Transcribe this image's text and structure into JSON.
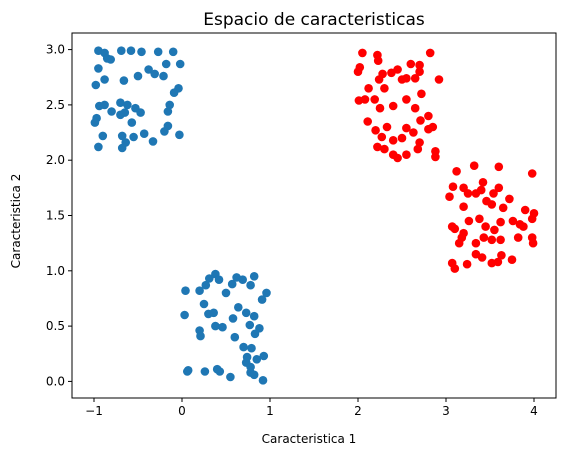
{
  "chart_data": {
    "type": "scatter",
    "title": "Espacio de caracteristicas",
    "xlabel": "Caracteristica 1",
    "ylabel": "Caracteristica 2",
    "xlim": [
      -1.25,
      4.25
    ],
    "ylim": [
      -0.15,
      3.15
    ],
    "xticks": [
      -1,
      0,
      1,
      2,
      3,
      4
    ],
    "yticks": [
      0.0,
      0.5,
      1.0,
      1.5,
      2.0,
      2.5,
      3.0
    ],
    "ytick_labels": [
      "0.0",
      "0.5",
      "1.0",
      "1.5",
      "2.0",
      "2.5",
      "3.0"
    ],
    "grid": false,
    "legend": "none",
    "series": [
      {
        "color": "#1f77b4",
        "points": [
          [
            -0.95,
            2.99
          ],
          [
            -0.88,
            2.97
          ],
          [
            -0.85,
            2.92
          ],
          [
            -0.69,
            2.99
          ],
          [
            -0.58,
            2.99
          ],
          [
            -0.46,
            2.98
          ],
          [
            -0.27,
            2.98
          ],
          [
            -0.1,
            2.98
          ],
          [
            -0.98,
            2.68
          ],
          [
            -0.95,
            2.83
          ],
          [
            -0.88,
            2.73
          ],
          [
            -0.81,
            2.91
          ],
          [
            -0.66,
            2.72
          ],
          [
            -0.5,
            2.76
          ],
          [
            -0.38,
            2.82
          ],
          [
            -0.31,
            2.78
          ],
          [
            -0.21,
            2.76
          ],
          [
            -0.02,
            2.87
          ],
          [
            -0.18,
            2.87
          ],
          [
            -0.94,
            2.49
          ],
          [
            -0.88,
            2.5
          ],
          [
            -0.97,
            2.38
          ],
          [
            -0.99,
            2.34
          ],
          [
            -0.8,
            2.44
          ],
          [
            -0.7,
            2.52
          ],
          [
            -0.62,
            2.5
          ],
          [
            -0.65,
            2.43
          ],
          [
            -0.7,
            2.41
          ],
          [
            -0.47,
            2.43
          ],
          [
            -0.53,
            2.47
          ],
          [
            -0.14,
            2.5
          ],
          [
            -0.16,
            2.44
          ],
          [
            -0.04,
            2.65
          ],
          [
            -0.09,
            2.61
          ],
          [
            -0.9,
            2.22
          ],
          [
            -0.95,
            2.12
          ],
          [
            -0.68,
            2.22
          ],
          [
            -0.64,
            2.16
          ],
          [
            -0.55,
            2.21
          ],
          [
            -0.57,
            2.34
          ],
          [
            -0.33,
            2.17
          ],
          [
            -0.2,
            2.26
          ],
          [
            -0.16,
            2.31
          ],
          [
            -0.03,
            2.23
          ],
          [
            -0.68,
            2.11
          ],
          [
            -0.43,
            2.24
          ],
          [
            0.04,
            0.82
          ],
          [
            0.27,
            0.87
          ],
          [
            0.31,
            0.93
          ],
          [
            0.38,
            0.97
          ],
          [
            0.42,
            0.92
          ],
          [
            0.5,
            0.8
          ],
          [
            0.57,
            0.88
          ],
          [
            0.62,
            0.94
          ],
          [
            0.69,
            0.92
          ],
          [
            0.78,
            0.87
          ],
          [
            0.82,
            0.95
          ],
          [
            0.91,
            0.74
          ],
          [
            0.96,
            0.8
          ],
          [
            0.2,
            0.82
          ],
          [
            0.25,
            0.7
          ],
          [
            0.03,
            0.6
          ],
          [
            0.2,
            0.46
          ],
          [
            0.3,
            0.61
          ],
          [
            0.36,
            0.62
          ],
          [
            0.38,
            0.5
          ],
          [
            0.46,
            0.49
          ],
          [
            0.58,
            0.57
          ],
          [
            0.64,
            0.67
          ],
          [
            0.73,
            0.62
          ],
          [
            0.82,
            0.59
          ],
          [
            0.77,
            0.51
          ],
          [
            0.21,
            0.41
          ],
          [
            0.6,
            0.4
          ],
          [
            0.7,
            0.31
          ],
          [
            0.83,
            0.43
          ],
          [
            0.88,
            0.48
          ],
          [
            0.93,
            0.23
          ],
          [
            0.4,
            0.11
          ],
          [
            0.43,
            0.09
          ],
          [
            0.26,
            0.09
          ],
          [
            0.07,
            0.1
          ],
          [
            0.06,
            0.09
          ],
          [
            0.55,
            0.04
          ],
          [
            0.73,
            0.17
          ],
          [
            0.78,
            0.08
          ],
          [
            0.82,
            0.06
          ],
          [
            0.85,
            0.2
          ],
          [
            0.78,
            0.13
          ],
          [
            0.74,
            0.22
          ],
          [
            0.92,
            0.01
          ],
          [
            0.79,
            0.3
          ]
        ]
      },
      {
        "color": "#ff0000",
        "points": [
          [
            2.05,
            2.97
          ],
          [
            2.22,
            2.95
          ],
          [
            2.23,
            2.9
          ],
          [
            2.38,
            2.79
          ],
          [
            2.5,
            2.73
          ],
          [
            2.6,
            2.87
          ],
          [
            2.7,
            2.86
          ],
          [
            2.7,
            2.8
          ],
          [
            2.82,
            2.97
          ],
          [
            2.92,
            2.73
          ],
          [
            2.02,
            2.84
          ],
          [
            2.0,
            2.8
          ],
          [
            2.12,
            2.65
          ],
          [
            2.24,
            2.73
          ],
          [
            2.28,
            2.78
          ],
          [
            2.45,
            2.82
          ],
          [
            2.55,
            2.74
          ],
          [
            2.65,
            2.74
          ],
          [
            2.72,
            2.6
          ],
          [
            2.01,
            2.54
          ],
          [
            2.08,
            2.55
          ],
          [
            2.19,
            2.55
          ],
          [
            2.25,
            2.47
          ],
          [
            2.3,
            2.65
          ],
          [
            2.4,
            2.49
          ],
          [
            2.55,
            2.55
          ],
          [
            2.65,
            2.47
          ],
          [
            2.8,
            2.4
          ],
          [
            2.85,
            2.3
          ],
          [
            2.71,
            2.36
          ],
          [
            2.11,
            2.35
          ],
          [
            2.2,
            2.27
          ],
          [
            2.27,
            2.21
          ],
          [
            2.33,
            2.3
          ],
          [
            2.4,
            2.18
          ],
          [
            2.5,
            2.2
          ],
          [
            2.55,
            2.29
          ],
          [
            2.63,
            2.25
          ],
          [
            2.7,
            2.16
          ],
          [
            2.8,
            2.28
          ],
          [
            2.22,
            2.12
          ],
          [
            2.3,
            2.1
          ],
          [
            2.4,
            2.05
          ],
          [
            2.45,
            2.02
          ],
          [
            2.55,
            2.05
          ],
          [
            2.68,
            2.1
          ],
          [
            2.88,
            2.08
          ],
          [
            2.88,
            2.03
          ],
          [
            3.12,
            1.9
          ],
          [
            3.32,
            1.95
          ],
          [
            3.42,
            1.8
          ],
          [
            3.6,
            1.94
          ],
          [
            3.98,
            1.88
          ],
          [
            3.08,
            1.76
          ],
          [
            3.2,
            1.75
          ],
          [
            3.25,
            1.7
          ],
          [
            3.34,
            1.7
          ],
          [
            3.4,
            1.73
          ],
          [
            3.54,
            1.7
          ],
          [
            3.6,
            1.75
          ],
          [
            3.04,
            1.67
          ],
          [
            3.2,
            1.58
          ],
          [
            3.46,
            1.63
          ],
          [
            3.52,
            1.6
          ],
          [
            3.65,
            1.57
          ],
          [
            3.72,
            1.65
          ],
          [
            3.9,
            1.55
          ],
          [
            4.0,
            1.52
          ],
          [
            3.98,
            1.47
          ],
          [
            3.07,
            1.4
          ],
          [
            3.1,
            1.38
          ],
          [
            3.2,
            1.34
          ],
          [
            3.26,
            1.45
          ],
          [
            3.38,
            1.47
          ],
          [
            3.45,
            1.4
          ],
          [
            3.55,
            1.37
          ],
          [
            3.62,
            1.44
          ],
          [
            3.76,
            1.45
          ],
          [
            3.84,
            1.42
          ],
          [
            3.88,
            1.4
          ],
          [
            3.15,
            1.25
          ],
          [
            3.18,
            1.3
          ],
          [
            3.34,
            1.25
          ],
          [
            3.43,
            1.3
          ],
          [
            3.52,
            1.28
          ],
          [
            3.62,
            1.28
          ],
          [
            3.82,
            1.3
          ],
          [
            3.98,
            1.3
          ],
          [
            3.99,
            1.25
          ],
          [
            3.07,
            1.07
          ],
          [
            3.1,
            1.02
          ],
          [
            3.24,
            1.06
          ],
          [
            3.34,
            1.15
          ],
          [
            3.41,
            1.12
          ],
          [
            3.52,
            1.07
          ],
          [
            3.59,
            1.08
          ],
          [
            3.63,
            1.14
          ],
          [
            3.75,
            1.1
          ]
        ]
      }
    ]
  }
}
